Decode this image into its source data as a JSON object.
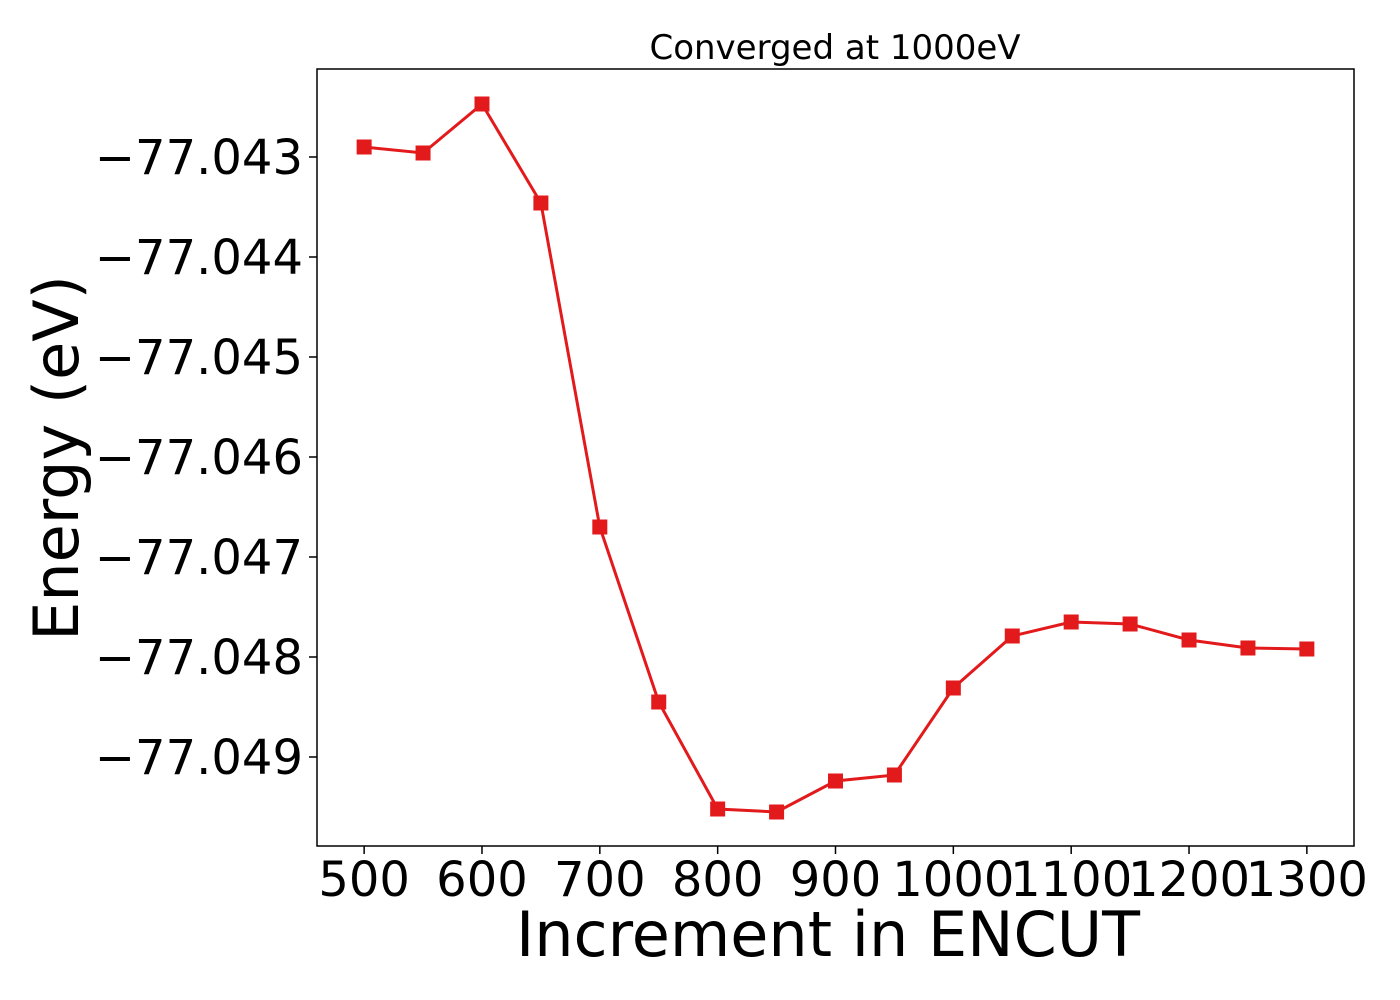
{
  "chart_data": {
    "type": "line",
    "title": "Converged at 1000eV",
    "xlabel": "Increment in ENCUT",
    "ylabel": "Energy (eV)",
    "x": [
      500,
      550,
      600,
      650,
      700,
      750,
      800,
      850,
      900,
      950,
      1000,
      1050,
      1100,
      1150,
      1200,
      1250,
      1300
    ],
    "series": [
      {
        "values": [
          -77.0429,
          -77.04296,
          -77.04247,
          -77.04346,
          -77.0467,
          -77.04845,
          -77.04952,
          -77.04955,
          -77.04924,
          -77.04918,
          -77.04831,
          -77.04779,
          -77.04765,
          -77.04767,
          -77.04783,
          -77.04791,
          -77.04792
        ],
        "color": "#e31a1c",
        "marker": "square"
      }
    ],
    "xlim": [
      460,
      1340
    ],
    "ylim": [
      -77.04989,
      -77.04212
    ],
    "x_ticks": [
      500,
      600,
      700,
      800,
      900,
      1000,
      1100,
      1200,
      1300
    ],
    "x_tick_labels": [
      "500",
      "600",
      "700",
      "800",
      "900",
      "1000",
      "1100",
      "1200",
      "1300"
    ],
    "y_ticks": [
      -77.043,
      -77.044,
      -77.045,
      -77.046,
      -77.047,
      -77.048,
      -77.049
    ],
    "y_tick_labels": [
      "−77.043",
      "−77.044",
      "−77.045",
      "−77.046",
      "−77.047",
      "−77.048",
      "−77.049"
    ],
    "grid": false,
    "legend": "none"
  }
}
